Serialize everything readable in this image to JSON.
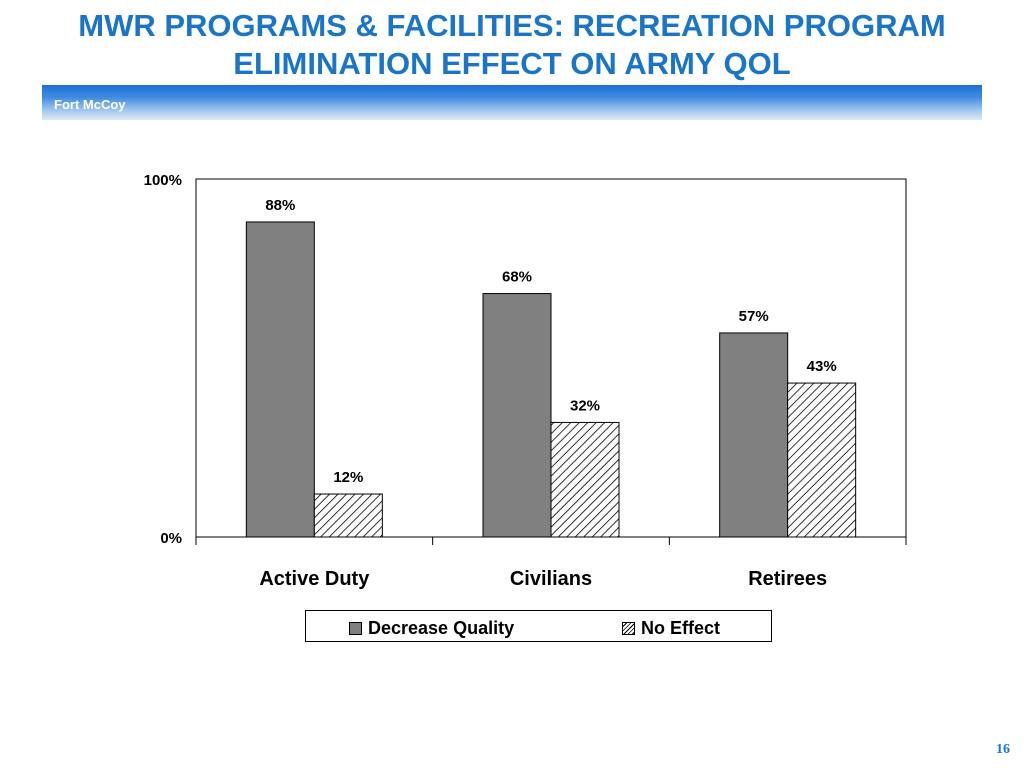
{
  "slide": {
    "title_line1": "MWR PROGRAMS & FACILITIES: RECREATION PROGRAM",
    "title_line2": "ELIMINATION EFFECT ON ARMY QOL",
    "subtitle": "Fort McCoy",
    "page_number": "16"
  },
  "colors": {
    "title": "#1a75c9",
    "bar_solid": "#808080",
    "hatch": "#000000"
  },
  "chart_data": {
    "type": "bar",
    "categories": [
      "Active Duty",
      "Civilians",
      "Retirees"
    ],
    "series": [
      {
        "name": "Decrease Quality",
        "values": [
          88,
          68,
          57
        ],
        "labels": [
          "88%",
          "68%",
          "57%"
        ],
        "fill": "solid-gray"
      },
      {
        "name": "No Effect",
        "values": [
          12,
          32,
          43
        ],
        "labels": [
          "12%",
          "32%",
          "43%"
        ],
        "fill": "diagonal-hatch"
      }
    ],
    "title": "",
    "xlabel": "",
    "ylabel": "",
    "ylim": [
      0,
      100
    ],
    "yticks": [
      "0%",
      "100%"
    ],
    "grid": false,
    "legend_position": "bottom"
  }
}
